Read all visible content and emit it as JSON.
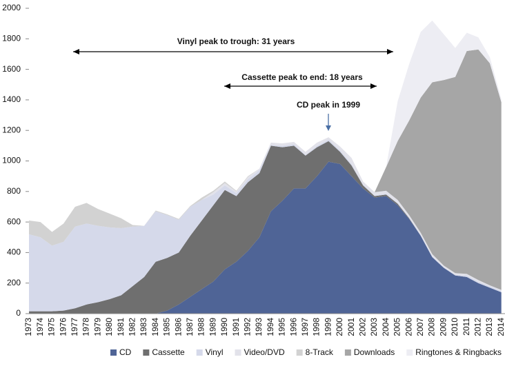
{
  "chart_data": {
    "type": "stacked-area",
    "categories": [
      "1973",
      "1974",
      "1975",
      "1976",
      "1977",
      "1978",
      "1979",
      "1980",
      "1981",
      "1982",
      "1983",
      "1984",
      "1985",
      "1986",
      "1987",
      "1988",
      "1989",
      "1990",
      "1991",
      "1992",
      "1993",
      "1994",
      "1995",
      "1996",
      "1997",
      "1998",
      "1999",
      "2000",
      "2001",
      "2002",
      "2003",
      "2004",
      "2005",
      "2006",
      "2007",
      "2008",
      "2009",
      "2010",
      "2011",
      "2012",
      "2013",
      "2014"
    ],
    "ylim": [
      0,
      2000
    ],
    "yticks": [
      0,
      200,
      400,
      600,
      800,
      1000,
      1200,
      1400,
      1600,
      1800,
      2000
    ],
    "annotations": [
      "Vinyl peak to trough: 31 years",
      "Cassette peak to end: 18 years",
      "CD peak in 1999"
    ],
    "series": [
      {
        "name": "CD",
        "color": "#4f6496",
        "values": [
          0,
          0,
          0,
          0,
          0,
          0,
          0,
          0,
          0,
          0,
          0,
          0,
          20,
          60,
          110,
          160,
          210,
          290,
          340,
          410,
          500,
          670,
          740,
          820,
          820,
          900,
          995,
          980,
          900,
          820,
          760,
          770,
          710,
          620,
          510,
          370,
          300,
          250,
          240,
          200,
          170,
          140
        ]
      },
      {
        "name": "Cassette",
        "color": "#6f6f6f",
        "values": [
          15,
          15,
          15,
          20,
          35,
          60,
          75,
          95,
          120,
          180,
          240,
          340,
          345,
          340,
          400,
          450,
          500,
          520,
          430,
          450,
          420,
          430,
          350,
          280,
          215,
          190,
          135,
          80,
          70,
          20,
          10,
          10,
          10,
          5,
          0,
          0,
          0,
          0,
          0,
          0,
          0,
          0
        ]
      },
      {
        "name": "Vinyl",
        "color": "#d5d9ea",
        "values": [
          505,
          485,
          430,
          450,
          535,
          530,
          500,
          470,
          440,
          390,
          335,
          330,
          280,
          215,
          190,
          135,
          70,
          30,
          20,
          20,
          20,
          5,
          10,
          10,
          5,
          10,
          10,
          10,
          10,
          5,
          5,
          5,
          5,
          5,
          5,
          5,
          5,
          5,
          10,
          10,
          10,
          10
        ]
      },
      {
        "name": "Video/DVD",
        "color": "#e2e2ea",
        "values": [
          0,
          0,
          0,
          0,
          0,
          0,
          0,
          0,
          0,
          0,
          0,
          0,
          0,
          0,
          0,
          0,
          15,
          15,
          10,
          15,
          10,
          15,
          15,
          15,
          20,
          20,
          15,
          25,
          40,
          20,
          20,
          20,
          20,
          15,
          15,
          15,
          10,
          10,
          10,
          10,
          5,
          5
        ]
      },
      {
        "name": "8-Track",
        "color": "#d2d2d2",
        "values": [
          90,
          100,
          90,
          120,
          130,
          135,
          110,
          90,
          65,
          10,
          0,
          5,
          5,
          5,
          5,
          15,
          10,
          10,
          5,
          5,
          0,
          0,
          0,
          0,
          0,
          0,
          0,
          0,
          0,
          0,
          0,
          0,
          0,
          0,
          0,
          0,
          0,
          0,
          0,
          0,
          0,
          0
        ]
      },
      {
        "name": "Downloads",
        "color": "#a6a6a6",
        "values": [
          0,
          0,
          0,
          0,
          0,
          0,
          0,
          0,
          0,
          0,
          0,
          0,
          0,
          0,
          0,
          0,
          0,
          0,
          0,
          0,
          0,
          0,
          0,
          0,
          0,
          0,
          0,
          0,
          0,
          0,
          0,
          155,
          385,
          620,
          885,
          1125,
          1215,
          1285,
          1460,
          1510,
          1455,
          1230
        ]
      },
      {
        "name": "Ringtones & Ringbacks",
        "color": "#ededf3",
        "values": [
          0,
          0,
          0,
          0,
          0,
          0,
          0,
          0,
          0,
          0,
          0,
          0,
          0,
          0,
          0,
          0,
          0,
          0,
          0,
          0,
          0,
          0,
          0,
          0,
          0,
          0,
          0,
          0,
          0,
          0,
          0,
          0,
          260,
          370,
          430,
          405,
          300,
          190,
          120,
          80,
          40,
          20
        ]
      }
    ]
  }
}
